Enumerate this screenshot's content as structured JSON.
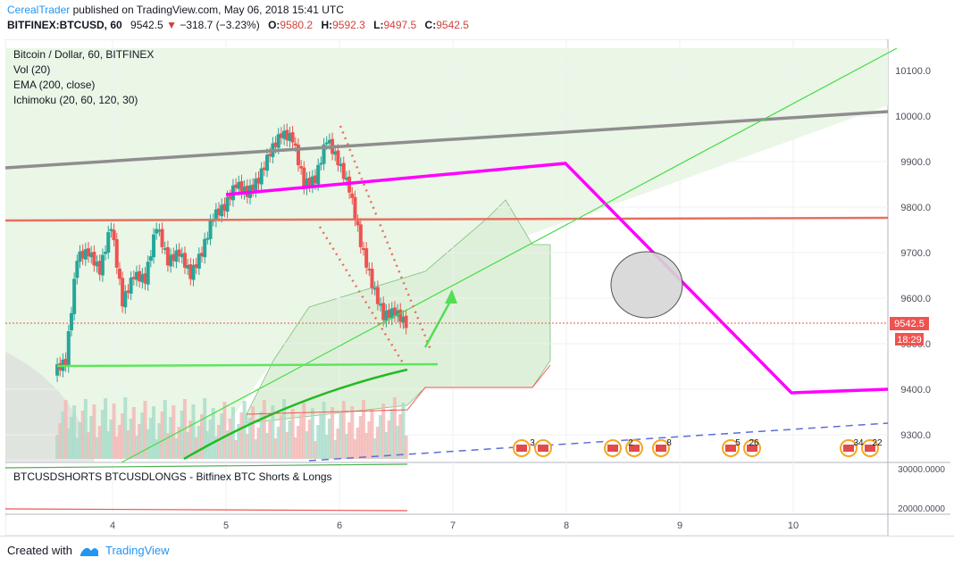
{
  "header": {
    "author": "CerealTrader",
    "published_text": "published on TradingView.com, May 06, 2018 15:41 UTC",
    "symbol": "BITFINEX:BTCUSD, 60",
    "last": "9542.5",
    "change": "−318.7 (−3.23%)",
    "o_label": "O:",
    "o_value": "9580.2",
    "h_label": "H:",
    "h_value": "9592.3",
    "l_label": "L:",
    "l_value": "9497.5",
    "c_label": "C:",
    "c_value": "9542.5"
  },
  "legend": {
    "title": "Bitcoin / Dollar, 60, BITFINEX",
    "vol": "Vol (20)",
    "ema": "EMA (200, close)",
    "ichimoku": "Ichimoku (20, 60, 120, 30)"
  },
  "pane2": {
    "title": "BTCUSDSHORTS BTCUSDLONGS - Bitfinex BTC Shorts & Longs"
  },
  "footer": {
    "created_with": "Created with",
    "brand": "TradingView"
  },
  "colors": {
    "up": "#26a69a",
    "down": "#ef5350",
    "magenta": "#ff00ff",
    "green_line": "#44dd44",
    "gray_line": "#888888",
    "resistance": "#e57060"
  },
  "chart_data": {
    "type": "line",
    "title": "Bitcoin / Dollar, 60, BITFINEX",
    "x_ticks": [
      "4",
      "5",
      "6",
      "7",
      "8",
      "9",
      "10"
    ],
    "y_ticks": [
      "10100.0",
      "10000.0",
      "9900.0",
      "9800.0",
      "9700.0",
      "9600.0",
      "9500.0",
      "9400.0",
      "9300.0"
    ],
    "y2_ticks": [
      "30000.0000",
      "20000.0000"
    ],
    "ylim": [
      9250,
      10150
    ],
    "last_price_label": "9542.5",
    "countdown_label": "18:29",
    "price": {
      "name": "BTCUSD",
      "x": [
        3.5,
        3.6,
        3.7,
        3.8,
        3.9,
        4.0,
        4.1,
        4.2,
        4.3,
        4.4,
        4.5,
        4.6,
        4.7,
        4.8,
        4.9,
        5.0,
        5.1,
        5.2,
        5.3,
        5.4,
        5.5,
        5.6,
        5.7,
        5.8,
        5.9,
        6.0,
        6.1,
        6.2,
        6.3,
        6.4,
        6.5,
        6.6
      ],
      "values": [
        9440,
        9460,
        9690,
        9700,
        9660,
        9760,
        9590,
        9650,
        9640,
        9760,
        9680,
        9700,
        9650,
        9700,
        9780,
        9800,
        9850,
        9830,
        9860,
        9920,
        9960,
        9950,
        9850,
        9860,
        9950,
        9900,
        9840,
        9720,
        9630,
        9560,
        9570,
        9542.5
      ]
    },
    "annotations": {
      "volume_bubbles": [
        "3",
        "2",
        "8",
        "5",
        "26",
        "34",
        "22"
      ]
    }
  }
}
